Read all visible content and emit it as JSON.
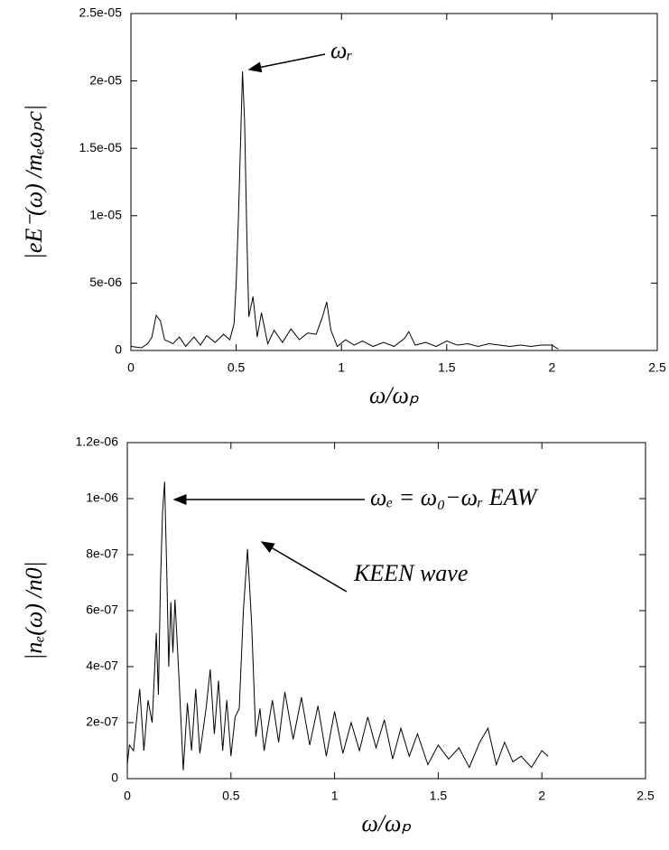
{
  "chart_data": [
    {
      "type": "line",
      "xlabel": "ω/ωₚ",
      "ylabel": "|eE⁻(ω) /mₑωₚc|",
      "annotations": [
        "ωᵣ"
      ],
      "x": [
        0,
        0.05,
        0.08,
        0.1,
        0.12,
        0.14,
        0.16,
        0.2,
        0.23,
        0.26,
        0.3,
        0.33,
        0.36,
        0.4,
        0.44,
        0.47,
        0.49,
        0.5,
        0.51,
        0.52,
        0.53,
        0.54,
        0.55,
        0.56,
        0.58,
        0.6,
        0.62,
        0.65,
        0.68,
        0.72,
        0.76,
        0.8,
        0.84,
        0.88,
        0.91,
        0.93,
        0.95,
        0.98,
        1.02,
        1.06,
        1.1,
        1.15,
        1.2,
        1.25,
        1.3,
        1.32,
        1.35,
        1.4,
        1.45,
        1.5,
        1.55,
        1.6,
        1.65,
        1.7,
        1.75,
        1.8,
        1.85,
        1.9,
        1.95,
        2.0,
        2.03
      ],
      "series": [
        {
          "color": "#000000",
          "values": [
            3e-07,
            2e-07,
            5e-07,
            1e-06,
            2.6e-06,
            2.2e-06,
            8e-07,
            5e-07,
            1e-06,
            3e-07,
            1e-06,
            4e-07,
            1.1e-06,
            6e-07,
            1.2e-06,
            8e-07,
            2e-06,
            5e-06,
            9.5e-06,
            1.5e-05,
            2.07e-05,
            1.7e-05,
            9e-06,
            2.5e-06,
            4e-06,
            1e-06,
            2.8e-06,
            5e-07,
            1.5e-06,
            6e-07,
            1.6e-06,
            8e-07,
            1.3e-06,
            1.2e-06,
            2.5e-06,
            3.6e-06,
            1.5e-06,
            3e-07,
            8e-07,
            4e-07,
            7e-07,
            3e-07,
            6e-07,
            3e-07,
            9e-07,
            1.4e-06,
            4e-07,
            6e-07,
            3e-07,
            7e-07,
            4e-07,
            5e-07,
            3e-07,
            5e-07,
            4e-07,
            3e-07,
            4e-07,
            3e-07,
            4e-07,
            4e-07,
            1e-07
          ]
        }
      ],
      "xlim": [
        0,
        2.5
      ],
      "xticks": [
        0,
        0.5,
        1,
        1.5,
        2,
        2.5
      ],
      "ylim": [
        0,
        2.5e-05
      ],
      "yticks": [
        0,
        {
          "value": 5e-06,
          "label": "5e-06"
        },
        {
          "value": 1e-05,
          "label": "1e-05"
        },
        {
          "value": 1.5e-05,
          "label": "1.5e-05"
        },
        {
          "value": 2e-05,
          "label": "2e-05"
        },
        {
          "value": 2.5e-05,
          "label": "2.5e-05"
        }
      ]
    },
    {
      "type": "line",
      "xlabel": "ω/ωₚ",
      "ylabel": "|nₑ(ω) /n0|",
      "annotations": [
        "ωₑ = ω₀−ωᵣ   EAW",
        "KEEN   wave"
      ],
      "x": [
        0,
        0.01,
        0.03,
        0.05,
        0.06,
        0.08,
        0.1,
        0.12,
        0.14,
        0.15,
        0.16,
        0.17,
        0.18,
        0.19,
        0.2,
        0.21,
        0.22,
        0.23,
        0.25,
        0.27,
        0.29,
        0.31,
        0.33,
        0.35,
        0.38,
        0.4,
        0.42,
        0.44,
        0.46,
        0.48,
        0.5,
        0.52,
        0.54,
        0.56,
        0.58,
        0.6,
        0.62,
        0.64,
        0.66,
        0.7,
        0.73,
        0.76,
        0.8,
        0.84,
        0.88,
        0.92,
        0.96,
        1.0,
        1.04,
        1.08,
        1.12,
        1.16,
        1.2,
        1.24,
        1.28,
        1.32,
        1.36,
        1.4,
        1.45,
        1.5,
        1.55,
        1.6,
        1.65,
        1.7,
        1.74,
        1.78,
        1.82,
        1.86,
        1.9,
        1.95,
        2.0,
        2.03
      ],
      "series": [
        {
          "color": "#000000",
          "values": [
            5e-08,
            1.2e-07,
            1e-07,
            2.5e-07,
            3.2e-07,
            1e-07,
            2.8e-07,
            2e-07,
            5.2e-07,
            3e-07,
            7e-07,
            9.5e-07,
            1.06e-06,
            7.5e-07,
            4e-07,
            6.3e-07,
            4.5e-07,
            6.4e-07,
            3.5e-07,
            3e-08,
            2.7e-07,
            1e-07,
            3.2e-07,
            9e-08,
            2.5e-07,
            3.9e-07,
            1.6e-07,
            3.5e-07,
            1e-07,
            2.8e-07,
            8e-08,
            2.2e-07,
            2.5e-07,
            6e-07,
            8.2e-07,
            5.5e-07,
            1.5e-07,
            2.5e-07,
            1e-07,
            2.8e-07,
            1.3e-07,
            3.1e-07,
            1.4e-07,
            2.9e-07,
            1.2e-07,
            2.6e-07,
            8e-08,
            2.4e-07,
            9e-08,
            2e-07,
            1e-07,
            2.2e-07,
            1.1e-07,
            2.1e-07,
            7e-08,
            1.8e-07,
            8e-08,
            1.6e-07,
            5e-08,
            1.2e-07,
            7e-08,
            1.1e-07,
            4e-08,
            1.3e-07,
            1.8e-07,
            5e-08,
            1.3e-07,
            6e-08,
            8e-08,
            4e-08,
            1e-07,
            8e-08
          ]
        }
      ],
      "xlim": [
        0,
        2.5
      ],
      "xticks": [
        0,
        0.5,
        1,
        1.5,
        2,
        2.5
      ],
      "ylim": [
        0,
        1.2e-06
      ],
      "yticks": [
        0,
        {
          "value": 2e-07,
          "label": "2e-07"
        },
        {
          "value": 4e-07,
          "label": "4e-07"
        },
        {
          "value": 6e-07,
          "label": "6e-07"
        },
        {
          "value": 8e-07,
          "label": "8e-07"
        },
        {
          "value": 1e-06,
          "label": "1e-06"
        },
        {
          "value": 1.2e-06,
          "label": "1.2e-06"
        }
      ]
    }
  ]
}
